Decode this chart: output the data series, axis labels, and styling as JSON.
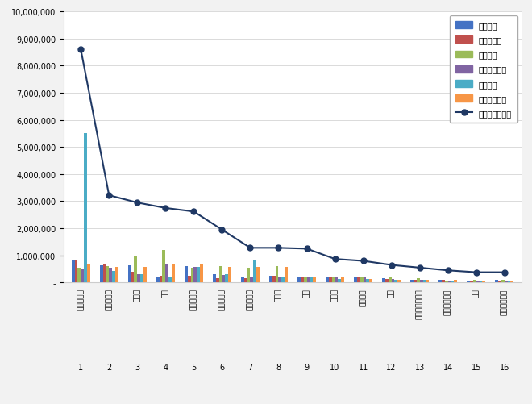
{
  "categories": [
    "웅진코웨이",
    "경동나비엔",
    "원스스",
    "하츠",
    "위니아드림",
    "신일일산업",
    "쿠쿠홈시스",
    "파세코",
    "오텍",
    "자이글",
    "유진로봇",
    "부방",
    "도래이첨단소재",
    "엔바이오니아",
    "행사",
    "한드로그린목"
  ],
  "x_labels": [
    "1",
    "2",
    "3",
    "4",
    "5",
    "6",
    "7",
    "8",
    "9",
    "10",
    "11",
    "12",
    "13",
    "14",
    "15",
    "16"
  ],
  "brand_reputation": [
    8600000,
    3220000,
    2950000,
    2750000,
    2620000,
    1950000,
    1280000,
    1280000,
    1250000,
    870000,
    800000,
    650000,
    550000,
    450000,
    380000,
    380000
  ],
  "participation": [
    800000,
    650000,
    650000,
    200000,
    600000,
    300000,
    200000,
    250000,
    200000,
    200000,
    200000,
    150000,
    100000,
    100000,
    80000,
    100000
  ],
  "media": [
    800000,
    700000,
    400000,
    250000,
    250000,
    150000,
    150000,
    250000,
    200000,
    200000,
    180000,
    120000,
    100000,
    100000,
    80000,
    80000
  ],
  "communication": [
    550000,
    600000,
    1000000,
    1200000,
    550000,
    600000,
    550000,
    600000,
    200000,
    200000,
    180000,
    200000,
    150000,
    80000,
    100000,
    100000
  ],
  "community": [
    500000,
    550000,
    300000,
    700000,
    580000,
    280000,
    200000,
    180000,
    200000,
    180000,
    180000,
    130000,
    100000,
    70000,
    70000,
    70000
  ],
  "market": [
    5500000,
    430000,
    320000,
    180000,
    580000,
    320000,
    800000,
    180000,
    180000,
    130000,
    130000,
    90000,
    90000,
    70000,
    70000,
    70000
  ],
  "social": [
    680000,
    580000,
    580000,
    700000,
    680000,
    580000,
    580000,
    580000,
    180000,
    180000,
    130000,
    90000,
    90000,
    90000,
    70000,
    70000
  ],
  "bar_colors": {
    "participation": "#4472C4",
    "media": "#C0504D",
    "communication": "#9BBB59",
    "community": "#8064A2",
    "market": "#4BACC6",
    "social": "#F79646"
  },
  "line_color": "#1F3864",
  "background_color": "#F2F2F2",
  "plot_bg": "#FFFFFF",
  "ylim": [
    0,
    10000000
  ],
  "yticks": [
    0,
    1000000,
    2000000,
    3000000,
    4000000,
    5000000,
    6000000,
    7000000,
    8000000,
    9000000,
    10000000
  ],
  "ytick_labels": [
    "-",
    "1,000,000",
    "2,000,000",
    "3,000,000",
    "4,000,000",
    "5,000,000",
    "6,000,000",
    "7,000,000",
    "8,000,000",
    "9,000,000",
    "10,000,000"
  ],
  "legend_labels": [
    "참여지수",
    "미디어지수",
    "소통지수",
    "커뮤니티지수",
    "시장지수",
    "사회공헌지수",
    "브랜드평판지수"
  ]
}
